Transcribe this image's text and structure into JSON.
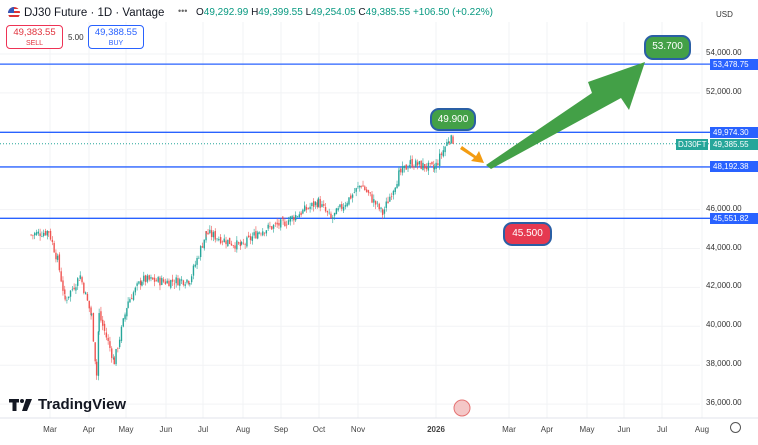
{
  "header": {
    "title": "DJ30 Future · 1D · Vantage",
    "ohlc": {
      "o_label": "O",
      "o": "49,292.99",
      "h_label": "H",
      "h": "49,399.55",
      "l_label": "L",
      "l": "49,254.05",
      "c_label": "C",
      "c": "49,385.55",
      "change": "+106.50 (+0.22%)"
    },
    "more": "•••"
  },
  "trade": {
    "sell_price": "49,383.55",
    "sell_label": "SELL",
    "spread": "5.00",
    "buy_price": "49,388.55",
    "buy_label": "BUY"
  },
  "currency": "USD",
  "price_ticks": [
    "54,000.00",
    "52,000.00",
    "46,000.00",
    "44,000.00",
    "42,000.00",
    "40,000.00",
    "38,000.00",
    "36,000.00"
  ],
  "price_tick_values": [
    54000,
    52000,
    46000,
    44000,
    42000,
    40000,
    38000,
    36000
  ],
  "levels": [
    {
      "value": 53478.75,
      "label": "53,478.75"
    },
    {
      "value": 49974.3,
      "label": "49,974.30"
    },
    {
      "value": 48192.38,
      "label": "48,192.38"
    },
    {
      "value": 45551.82,
      "label": "45,551.82"
    }
  ],
  "current": {
    "symbol": "DJ30FT",
    "price": 49385.55,
    "label": "49,385.55"
  },
  "notes": [
    {
      "text": "49.900",
      "color": "#43a047"
    },
    {
      "text": "53.700",
      "color": "#43a047"
    },
    {
      "text": "45.500",
      "color": "#e53950"
    }
  ],
  "time_labels": [
    "Mar",
    "Apr",
    "May",
    "Jun",
    "Jul",
    "Aug",
    "Sep",
    "Oct",
    "Nov",
    "2026",
    "Mar",
    "Apr",
    "May",
    "Jun",
    "Jul",
    "Aug"
  ],
  "logo": "TradingView",
  "colors": {
    "up": "#26a69a",
    "down": "#ef5350",
    "level": "#2962ff",
    "arrow_up": "#43a047",
    "arrow_down": "#f39c12"
  },
  "chart_data": {
    "type": "candlestick",
    "price_range": [
      35500,
      55000
    ],
    "key_closes": [
      [
        "2025-02-14",
        44700
      ],
      [
        "2025-02-28",
        44900
      ],
      [
        "2025-03-07",
        43400
      ],
      [
        "2025-03-13",
        41350
      ],
      [
        "2025-03-25",
        42600
      ],
      [
        "2025-04-03",
        40500
      ],
      [
        "2025-04-07",
        37500
      ],
      [
        "2025-04-09",
        40600
      ],
      [
        "2025-04-21",
        38200
      ],
      [
        "2025-05-02",
        41300
      ],
      [
        "2025-05-13",
        42400
      ],
      [
        "2025-06-02",
        42300
      ],
      [
        "2025-06-20",
        42400
      ],
      [
        "2025-07-03",
        44800
      ],
      [
        "2025-07-31",
        44100
      ],
      [
        "2025-08-14",
        44900
      ],
      [
        "2025-09-02",
        45300
      ],
      [
        "2025-09-30",
        46400
      ],
      [
        "2025-10-10",
        45500
      ],
      [
        "2025-11-03",
        47300
      ],
      [
        "2025-11-20",
        45800
      ],
      [
        "2025-12-03",
        47800
      ],
      [
        "2025-12-12",
        48400
      ],
      [
        "2025-12-31",
        48100
      ],
      [
        "2026-01-12",
        49700
      ],
      [
        "2026-01-16",
        49385
      ]
    ]
  }
}
